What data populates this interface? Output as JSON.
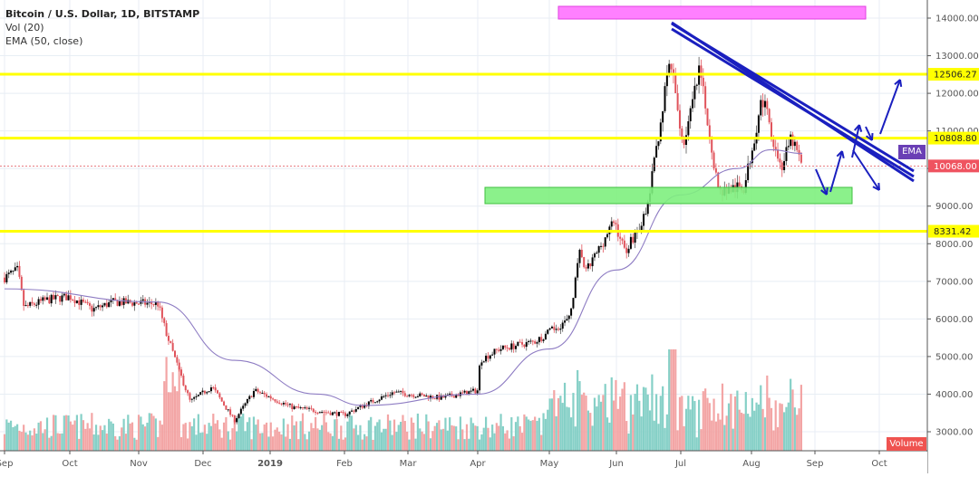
{
  "legend": {
    "title": "Bitcoin / U.S. Dollar, 1D, BITSTAMP",
    "volume": "Vol (20)",
    "ema": "EMA (50, close)"
  },
  "price_axis": {
    "ticks": [
      "14000.00",
      "13000.00",
      "12000.00",
      "11000.00",
      "10000.00",
      "9000.00",
      "8000.00",
      "7000.00",
      "6000.00",
      "5000.00",
      "4000.00",
      "3000.00"
    ],
    "tick_values": [
      14000,
      13000,
      12000,
      11000,
      10000,
      9000,
      8000,
      7000,
      6000,
      5000,
      4000,
      3000
    ],
    "level_labels": [
      {
        "text": "12506.27",
        "value": 12506.27,
        "bg": "#ffff00",
        "fg": "#222222"
      },
      {
        "text": "10808.80",
        "value": 10808.8,
        "bg": "#ffff00",
        "fg": "#222222"
      },
      {
        "text": "10068.00",
        "value": 10068.0,
        "bg": "#ef5360",
        "fg": "#ffffff"
      },
      {
        "text": "8331.42",
        "value": 8331.42,
        "bg": "#ffff00",
        "fg": "#222222"
      }
    ]
  },
  "time_axis": {
    "labels": [
      "Sep",
      "Oct",
      "Nov",
      "Dec",
      "2019",
      "Feb",
      "Mar",
      "Apr",
      "May",
      "Jun",
      "Jul",
      "Aug",
      "Sep",
      "Oct"
    ]
  },
  "badges": {
    "ema": "EMA",
    "volume": "Volume"
  },
  "colors": {
    "up_candle": "#000000",
    "down_candle": "#e0535b",
    "vol_up": "#7fcdc4",
    "vol_down": "#f2a0a0",
    "ema_line": "#8e7cc3",
    "horizontal_level": "#ffff00",
    "trendline": "#1a1fbf",
    "support_zone": "#7ef07e",
    "target_zone": "#ff80ff",
    "ema_badge": "#6a3fb5",
    "price_badge": "#ef5360",
    "volume_badge": "#ef5350",
    "grid": "#e8eef4"
  },
  "chart_data": {
    "type": "candlestick",
    "title": "Bitcoin / U.S. Dollar, 1D, BITSTAMP",
    "indicators": [
      "Vol (20)",
      "EMA (50, close)"
    ],
    "xlabel": "",
    "ylabel": "",
    "ylim": [
      2600,
      14500
    ],
    "x_range": [
      "2018-09",
      "2019-10"
    ],
    "x_ticks": [
      "Sep",
      "Oct",
      "Nov",
      "Dec",
      "2019",
      "Feb",
      "Mar",
      "Apr",
      "May",
      "Jun",
      "Jul",
      "Aug",
      "Sep",
      "Oct"
    ],
    "y_ticks": [
      3000,
      4000,
      5000,
      6000,
      7000,
      8000,
      9000,
      10000,
      11000,
      12000,
      13000,
      14000
    ],
    "grid": true,
    "last_price": 10068.0,
    "horizontal_levels": [
      12506.27,
      10808.8,
      8331.42
    ],
    "monthly_close_approx": {
      "x": [
        "2018-09",
        "2018-10",
        "2018-11",
        "2018-12",
        "2019-01",
        "2019-02",
        "2019-03",
        "2019-04",
        "2019-05",
        "2019-06",
        "2019-07",
        "2019-08"
      ],
      "close": [
        6600,
        6350,
        4000,
        3750,
        3450,
        3850,
        4100,
        5300,
        8550,
        10800,
        10100,
        10068
      ]
    },
    "price_path_approx": [
      {
        "x": "2018-09-01",
        "y": 7100
      },
      {
        "x": "2018-09-07",
        "y": 7300
      },
      {
        "x": "2018-09-10",
        "y": 6300
      },
      {
        "x": "2018-09-20",
        "y": 6500
      },
      {
        "x": "2018-10-01",
        "y": 6600
      },
      {
        "x": "2018-10-11",
        "y": 6250
      },
      {
        "x": "2018-10-20",
        "y": 6450
      },
      {
        "x": "2018-11-10",
        "y": 6400
      },
      {
        "x": "2018-11-14",
        "y": 5600
      },
      {
        "x": "2018-11-20",
        "y": 4600
      },
      {
        "x": "2018-11-25",
        "y": 3800
      },
      {
        "x": "2018-12-05",
        "y": 4200
      },
      {
        "x": "2018-12-15",
        "y": 3300
      },
      {
        "x": "2018-12-24",
        "y": 4100
      },
      {
        "x": "2019-01-10",
        "y": 3650
      },
      {
        "x": "2019-01-31",
        "y": 3450
      },
      {
        "x": "2019-02-08",
        "y": 3650
      },
      {
        "x": "2019-02-24",
        "y": 4050
      },
      {
        "x": "2019-03-15",
        "y": 3900
      },
      {
        "x": "2019-03-31",
        "y": 4100
      },
      {
        "x": "2019-04-02",
        "y": 4900
      },
      {
        "x": "2019-04-10",
        "y": 5200
      },
      {
        "x": "2019-04-25",
        "y": 5400
      },
      {
        "x": "2019-05-10",
        "y": 6000
      },
      {
        "x": "2019-05-15",
        "y": 7900
      },
      {
        "x": "2019-05-17",
        "y": 7200
      },
      {
        "x": "2019-05-30",
        "y": 8600
      },
      {
        "x": "2019-06-05",
        "y": 7800
      },
      {
        "x": "2019-06-15",
        "y": 8800
      },
      {
        "x": "2019-06-26",
        "y": 12900
      },
      {
        "x": "2019-07-02",
        "y": 10600
      },
      {
        "x": "2019-07-09",
        "y": 12600
      },
      {
        "x": "2019-07-17",
        "y": 9400
      },
      {
        "x": "2019-07-28",
        "y": 9500
      },
      {
        "x": "2019-08-06",
        "y": 11900
      },
      {
        "x": "2019-08-15",
        "y": 10000
      },
      {
        "x": "2019-08-20",
        "y": 10800
      },
      {
        "x": "2019-08-25",
        "y": 10068
      }
    ],
    "ema50_approx": [
      {
        "x": "2018-09-01",
        "y": 6800
      },
      {
        "x": "2018-11-10",
        "y": 6450
      },
      {
        "x": "2018-12-15",
        "y": 4900
      },
      {
        "x": "2019-01-20",
        "y": 4000
      },
      {
        "x": "2019-02-10",
        "y": 3700
      },
      {
        "x": "2019-03-31",
        "y": 4000
      },
      {
        "x": "2019-05-01",
        "y": 5200
      },
      {
        "x": "2019-06-01",
        "y": 7300
      },
      {
        "x": "2019-07-01",
        "y": 9300
      },
      {
        "x": "2019-07-25",
        "y": 10000
      },
      {
        "x": "2019-08-10",
        "y": 10500
      },
      {
        "x": "2019-08-25",
        "y": 10400
      }
    ],
    "annotations": [
      {
        "type": "rectangle",
        "label": "target zone",
        "color": "#ff80ff",
        "y_range": [
          14050,
          14400
        ],
        "x_range": [
          "2019-05-20",
          "2019-09-28"
        ]
      },
      {
        "type": "rectangle",
        "label": "support zone",
        "color": "#7ef07e",
        "y_range": [
          9050,
          9500
        ],
        "x_range": [
          "2019-04-05",
          "2019-09-10"
        ]
      },
      {
        "type": "trendline",
        "label": "descending resistance (double)",
        "color": "#1a1fbf",
        "from": {
          "x": "2019-06-26",
          "y": 13800
        },
        "to": {
          "x": "2019-10-01",
          "y": 9650
        }
      },
      {
        "type": "arrows",
        "label": "projected path down to support then up",
        "color": "#1a1fbf"
      },
      {
        "type": "arrows",
        "label": "projected breakout path to 12506",
        "color": "#1a1fbf"
      }
    ],
    "volume": {
      "series": "Vol (20)",
      "max_visible_bar_at": "2019-06-26"
    }
  }
}
